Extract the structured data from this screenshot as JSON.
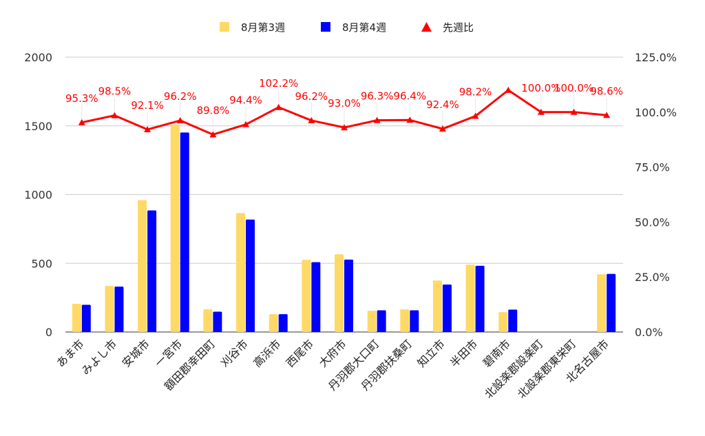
{
  "chart_data": {
    "type": "bar",
    "categories": [
      "あま市",
      "みよし市",
      "安城市",
      "一宮市",
      "額田郡幸田町",
      "刈谷市",
      "高浜市",
      "西尾市",
      "大府市",
      "丹羽郡大口町",
      "丹羽郡扶桑町",
      "知立市",
      "半田市",
      "碧南市",
      "北設楽郡設楽町",
      "北設楽郡東栄町",
      "北名古屋市"
    ],
    "series": [
      {
        "name": "8月第3週",
        "axis": "left",
        "color": "#ffd966",
        "values": [
          205,
          335,
          960,
          1510,
          165,
          865,
          130,
          525,
          565,
          155,
          165,
          375,
          490,
          145,
          0,
          0,
          420
        ]
      },
      {
        "name": "8月第4週",
        "axis": "left",
        "color": "#0000ff",
        "values": [
          198,
          330,
          885,
          1452,
          148,
          818,
          130,
          508,
          527,
          158,
          158,
          345,
          482,
          163,
          0,
          0,
          423
        ]
      },
      {
        "name": "先週比",
        "axis": "right",
        "type": "line",
        "color": "#ff0000",
        "values": [
          95.3,
          98.5,
          92.1,
          96.2,
          89.8,
          94.4,
          102.2,
          96.2,
          93.0,
          96.3,
          96.4,
          92.4,
          98.2,
          110.0,
          100.0,
          100.0,
          98.6
        ],
        "labels": [
          "95.3%",
          "98.5%",
          "92.1%",
          "96.2%",
          "89.8%",
          "94.4%",
          "102.2%",
          "96.2%",
          "93.0%",
          "96.3%",
          "96.4%",
          "92.4%",
          "98.2%",
          "",
          "100.0%",
          "100.0%",
          "98.6%"
        ]
      }
    ],
    "y_left": {
      "ylim": [
        0,
        2000
      ],
      "ticks": [
        "0",
        "500",
        "1000",
        "1500",
        "2000"
      ],
      "tick_values": [
        0,
        500,
        1000,
        1500,
        2000
      ]
    },
    "y_right": {
      "ylim": [
        0,
        125
      ],
      "ticks": [
        "0.0%",
        "25.0%",
        "50.0%",
        "75.0%",
        "100.0%",
        "125.0%"
      ],
      "tick_values": [
        0,
        25,
        50,
        75,
        100,
        125
      ]
    },
    "grid": true,
    "legend_position": "top-center"
  }
}
